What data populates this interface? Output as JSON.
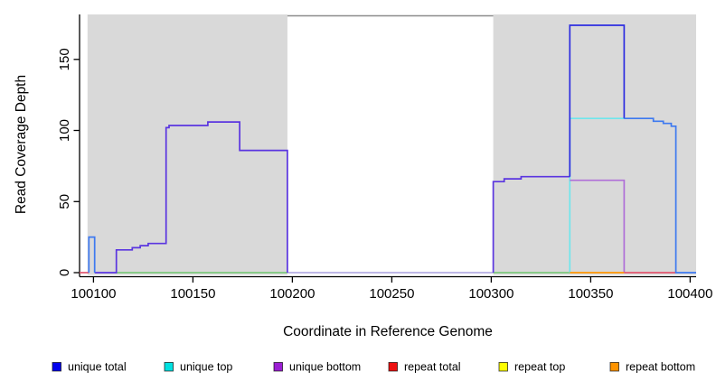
{
  "chart_data": {
    "type": "line",
    "title": "",
    "xlabel": "Coordinate in Reference Genome",
    "ylabel": "Read Coverage Depth",
    "xlim": [
      100093,
      100403
    ],
    "ylim": [
      0,
      181
    ],
    "x_ticks": [
      100100,
      100150,
      100200,
      100250,
      100300,
      100350,
      100400
    ],
    "y_ticks": [
      0,
      50,
      100,
      150
    ],
    "grid": false,
    "background": "#ffffff",
    "shaded_regions": [
      {
        "x0": 100097,
        "x1": 100197.5,
        "color": "#d9d9d9"
      },
      {
        "x0": 100301,
        "x1": 100403,
        "color": "#d9d9d9"
      }
    ],
    "gap_border": {
      "x0": 100197.5,
      "x1": 100301,
      "color": "#8c8c8c"
    },
    "segments": [
      {
        "series": "baseline green",
        "color": "#7cc87c",
        "points": [
          [
            100111.5,
            0
          ],
          [
            100339.5,
            0
          ]
        ]
      },
      {
        "series": "unique top",
        "color": "#6fe6ec",
        "points": [
          [
            100339.5,
            0
          ],
          [
            100339.5,
            108.5
          ],
          [
            100367,
            108.5
          ]
        ]
      },
      {
        "series": "unique bottom",
        "color": "#b06fd8",
        "points": [
          [
            100339.5,
            65
          ],
          [
            100366.8,
            65
          ],
          [
            100366.8,
            0
          ]
        ]
      },
      {
        "series": "repeat bottom",
        "color": "#ff9500",
        "points": [
          [
            100339.5,
            0
          ],
          [
            100366.8,
            0
          ]
        ]
      },
      {
        "series": "repeat total",
        "color": "#e0556e",
        "points": [
          [
            100093,
            0
          ],
          [
            100097.7,
            0
          ]
        ]
      },
      {
        "series": "repeat total",
        "color": "#e0556e",
        "points": [
          [
            100366.8,
            0
          ],
          [
            100392.8,
            0
          ]
        ]
      },
      {
        "series": "baseline gap",
        "color": "#c3b3f2",
        "points": [
          [
            100197.5,
            0
          ],
          [
            100301,
            0
          ]
        ]
      },
      {
        "series": "unique total",
        "color": "#5a35e0",
        "points": [
          [
            100100.6,
            0
          ],
          [
            100111.5,
            0
          ],
          [
            100111.5,
            16
          ],
          [
            100119.5,
            16
          ],
          [
            100119.5,
            17.5
          ],
          [
            100123.5,
            17.5
          ],
          [
            100123.5,
            19
          ],
          [
            100127.5,
            19
          ],
          [
            100127.5,
            20.5
          ],
          [
            100136.5,
            20.5
          ],
          [
            100136.5,
            102
          ],
          [
            100138,
            102
          ],
          [
            100138,
            103.5
          ],
          [
            100157.5,
            103.5
          ],
          [
            100157.5,
            106
          ],
          [
            100173.5,
            106
          ],
          [
            100173.5,
            86
          ],
          [
            100197.5,
            86
          ],
          [
            100197.5,
            0
          ]
        ]
      },
      {
        "series": "unique total",
        "color": "#5a35e0",
        "points": [
          [
            100301,
            0
          ],
          [
            100301,
            64
          ],
          [
            100306.5,
            64
          ],
          [
            100306.5,
            66
          ],
          [
            100315,
            66
          ],
          [
            100315,
            67.5
          ],
          [
            100339.5,
            67.5
          ]
        ]
      },
      {
        "series": "unique total",
        "color": "#2d2de0",
        "points": [
          [
            100339.5,
            67.5
          ],
          [
            100339.5,
            174
          ],
          [
            100366.8,
            174
          ],
          [
            100366.8,
            108.5
          ]
        ]
      },
      {
        "series": "unique total",
        "color": "#3d79f0",
        "points": [
          [
            100366.8,
            108.5
          ],
          [
            100381.5,
            108.5
          ],
          [
            100381.5,
            106.5
          ],
          [
            100386.5,
            106.5
          ],
          [
            100386.5,
            105
          ],
          [
            100390.5,
            105
          ],
          [
            100390.5,
            103
          ],
          [
            100392.8,
            103
          ],
          [
            100392.8,
            0
          ],
          [
            100403,
            0
          ]
        ]
      },
      {
        "series": "unique total",
        "color": "#3d79f0",
        "points": [
          [
            100097.7,
            0
          ],
          [
            100097.7,
            25
          ],
          [
            100100.6,
            25
          ],
          [
            100100.6,
            0
          ]
        ]
      }
    ],
    "legend": [
      {
        "label": "unique total",
        "color": "#0000ee"
      },
      {
        "label": "unique top",
        "color": "#00e1e1"
      },
      {
        "label": "unique bottom",
        "color": "#9c1fd4"
      },
      {
        "label": "repeat total",
        "color": "#ee1111"
      },
      {
        "label": "repeat top",
        "color": "#ffff00"
      },
      {
        "label": "repeat bottom",
        "color": "#ff9400"
      }
    ]
  }
}
